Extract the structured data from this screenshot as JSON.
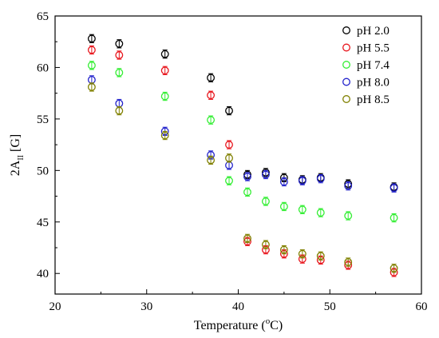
{
  "chart_data": {
    "type": "scatter",
    "xlabel_main": "Temperature (",
    "xlabel_sup": "o",
    "xlabel_end": "C)",
    "ylabel_main": "2A",
    "ylabel_sub": "II",
    "ylabel_end": " [G]",
    "xlim": [
      20,
      60
    ],
    "ylim": [
      38,
      65
    ],
    "xticks": [
      20,
      30,
      40,
      50,
      60
    ],
    "yticks": [
      40,
      45,
      50,
      55,
      60,
      65
    ],
    "legend_position": "top-right",
    "grid": false,
    "error_bar": 0.4,
    "series": [
      {
        "name": "pH 2.0",
        "color": "#000000",
        "points": [
          [
            24,
            62.8
          ],
          [
            27,
            62.3
          ],
          [
            32,
            61.3
          ],
          [
            37,
            59.0
          ],
          [
            39,
            55.8
          ],
          [
            41,
            49.6
          ],
          [
            43,
            49.8
          ],
          [
            45,
            49.3
          ],
          [
            47,
            49.1
          ],
          [
            49,
            49.3
          ],
          [
            52,
            48.7
          ],
          [
            57,
            48.4
          ]
        ]
      },
      {
        "name": "pH 5.5",
        "color": "#e8161d",
        "points": [
          [
            24,
            61.7
          ],
          [
            27,
            61.2
          ],
          [
            32,
            59.7
          ],
          [
            37,
            57.3
          ],
          [
            39,
            52.5
          ],
          [
            41,
            43.1
          ],
          [
            43,
            42.3
          ],
          [
            45,
            41.9
          ],
          [
            47,
            41.4
          ],
          [
            49,
            41.3
          ],
          [
            52,
            40.8
          ],
          [
            57,
            40.1
          ]
        ]
      },
      {
        "name": "pH 7.4",
        "color": "#33ee33",
        "points": [
          [
            24,
            60.2
          ],
          [
            27,
            59.5
          ],
          [
            32,
            57.2
          ],
          [
            37,
            54.9
          ],
          [
            39,
            49.0
          ],
          [
            41,
            47.9
          ],
          [
            43,
            47.0
          ],
          [
            45,
            46.5
          ],
          [
            47,
            46.2
          ],
          [
            49,
            45.9
          ],
          [
            52,
            45.6
          ],
          [
            57,
            45.4
          ]
        ]
      },
      {
        "name": "pH 8.0",
        "color": "#2323cc",
        "points": [
          [
            24,
            58.8
          ],
          [
            27,
            56.5
          ],
          [
            32,
            53.8
          ],
          [
            37,
            51.5
          ],
          [
            39,
            50.5
          ],
          [
            41,
            49.4
          ],
          [
            43,
            49.6
          ],
          [
            45,
            48.9
          ],
          [
            47,
            49.0
          ],
          [
            49,
            49.2
          ],
          [
            52,
            48.5
          ],
          [
            57,
            48.3
          ]
        ]
      },
      {
        "name": "pH 8.5",
        "color": "#808000",
        "points": [
          [
            24,
            58.1
          ],
          [
            27,
            55.8
          ],
          [
            32,
            53.4
          ],
          [
            37,
            51.0
          ],
          [
            39,
            51.2
          ],
          [
            41,
            43.4
          ],
          [
            43,
            42.8
          ],
          [
            45,
            42.3
          ],
          [
            47,
            41.9
          ],
          [
            49,
            41.7
          ],
          [
            52,
            41.1
          ],
          [
            57,
            40.5
          ]
        ]
      }
    ]
  }
}
